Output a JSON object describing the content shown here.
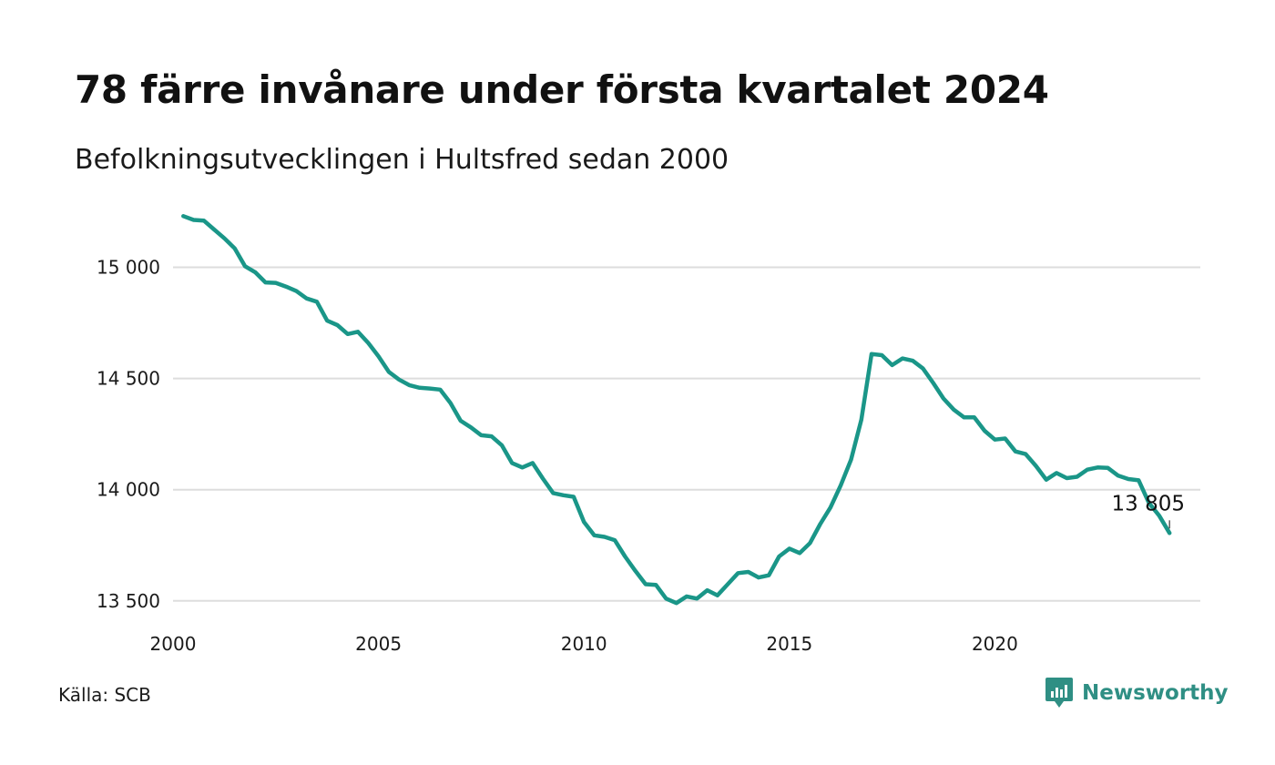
{
  "header": {
    "title": "78 färre invånare under första kvartalet 2024",
    "subtitle": "Befolkningsutvecklingen i Hultsfred sedan 2000"
  },
  "footer": {
    "source": "Källa: SCB",
    "brand": "Newsworthy"
  },
  "colors": {
    "line": "#1a9688",
    "grid": "#dddddd",
    "brand": "#2f8f84"
  },
  "chart_data": {
    "type": "line",
    "title": "78 färre invånare under första kvartalet 2024",
    "subtitle": "Befolkningsutvecklingen i Hultsfred sedan 2000",
    "xlabel": "",
    "ylabel": "",
    "xlim": [
      2000,
      2025
    ],
    "ylim": [
      13450,
      15260
    ],
    "x_ticks": [
      2000,
      2005,
      2010,
      2015,
      2020
    ],
    "x_tick_labels": [
      "2000",
      "2005",
      "2010",
      "2015",
      "2020"
    ],
    "y_ticks": [
      13500,
      14000,
      14500,
      15000
    ],
    "y_tick_labels": [
      "13 500",
      "14 000",
      "14 500",
      "15 000"
    ],
    "grid": "horizontal",
    "end_label": "13 805",
    "x": [
      2000.25,
      2000.5,
      2000.75,
      2001.0,
      2001.25,
      2001.5,
      2001.75,
      2002.0,
      2002.25,
      2002.5,
      2002.75,
      2003.0,
      2003.25,
      2003.5,
      2003.75,
      2004.0,
      2004.25,
      2004.5,
      2004.75,
      2005.0,
      2005.25,
      2005.5,
      2005.75,
      2006.0,
      2006.25,
      2006.5,
      2006.75,
      2007.0,
      2007.25,
      2007.5,
      2007.75,
      2008.0,
      2008.25,
      2008.5,
      2008.75,
      2009.0,
      2009.25,
      2009.5,
      2009.75,
      2010.0,
      2010.25,
      2010.5,
      2010.75,
      2011.0,
      2011.25,
      2011.5,
      2011.75,
      2012.0,
      2012.25,
      2012.5,
      2012.75,
      2013.0,
      2013.25,
      2013.5,
      2013.75,
      2014.0,
      2014.25,
      2014.5,
      2014.75,
      2015.0,
      2015.25,
      2015.5,
      2015.75,
      2016.0,
      2016.25,
      2016.5,
      2016.75,
      2017.0,
      2017.25,
      2017.5,
      2017.75,
      2018.0,
      2018.25,
      2018.5,
      2018.75,
      2019.0,
      2019.25,
      2019.5,
      2019.75,
      2020.0,
      2020.25,
      2020.5,
      2020.75,
      2021.0,
      2021.25,
      2021.5,
      2021.75,
      2022.0,
      2022.25,
      2022.5,
      2022.75,
      2023.0,
      2023.25,
      2023.5,
      2023.75,
      2024.0,
      2024.25
    ],
    "series": [
      {
        "values": [
          15230,
          15213,
          15210,
          15170,
          15130,
          15085,
          15005,
          14978,
          14932,
          14930,
          14913,
          14893,
          14860,
          14845,
          14760,
          14740,
          14700,
          14710,
          14660,
          14600,
          14530,
          14495,
          14470,
          14458,
          14455,
          14450,
          14390,
          14310,
          14280,
          14245,
          14240,
          14200,
          14120,
          14100,
          14120,
          14050,
          13985,
          13975,
          13968,
          13855,
          13795,
          13788,
          13773,
          13700,
          13635,
          13575,
          13572,
          13510,
          13490,
          13520,
          13510,
          13548,
          13525,
          13575,
          13625,
          13630,
          13605,
          13615,
          13700,
          13735,
          13715,
          13760,
          13845,
          13920,
          14020,
          14135,
          14315,
          14610,
          14605,
          14560,
          14590,
          14580,
          14545,
          14480,
          14410,
          14360,
          14325,
          14325,
          14265,
          14225,
          14230,
          14172,
          14160,
          14107,
          14045,
          14075,
          14052,
          14058,
          14090,
          14100,
          14098,
          14063,
          14048,
          14042,
          13940,
          13883,
          13805
        ]
      }
    ]
  }
}
